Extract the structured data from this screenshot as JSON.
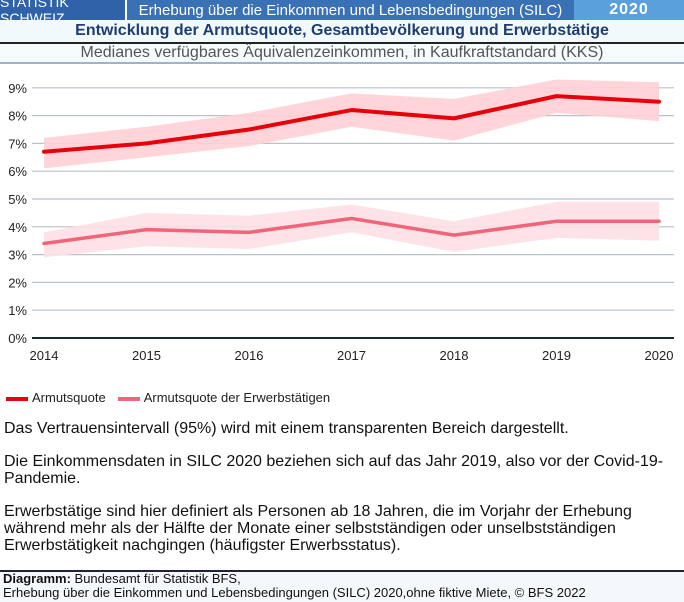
{
  "header": {
    "org": "STATISTIK SCHWEIZ",
    "survey": "Erhebung über die Einkommen und Lebensbedingungen (SILC)",
    "year": "2020"
  },
  "title": "Entwicklung der Armutsquote, Gesamtbevölkerung und Erwerbstätige",
  "subtitle": "Medianes verfügbares Äquivalenzeinkommen, in Kaufkraftstandard (KKS)",
  "chart_data": {
    "type": "line",
    "x": [
      "2014",
      "2015",
      "2016",
      "2017",
      "2018",
      "2019",
      "2020"
    ],
    "yticks": [
      "0%",
      "1%",
      "2%",
      "3%",
      "4%",
      "5%",
      "6%",
      "7%",
      "8%",
      "9%"
    ],
    "ylim": [
      0,
      9.3
    ],
    "grid": true,
    "legend": "bottom-left",
    "series": [
      {
        "name": "Armutsquote",
        "color": "#e8000b",
        "band_color": "#ffd0d6",
        "values": [
          6.7,
          7.0,
          7.5,
          8.2,
          7.9,
          8.7,
          8.5
        ],
        "lower": [
          6.1,
          6.5,
          6.9,
          7.6,
          7.1,
          8.1,
          7.8
        ],
        "upper": [
          7.2,
          7.6,
          8.1,
          8.8,
          8.6,
          9.3,
          9.2
        ]
      },
      {
        "name": "Armutsquote der Erwerbstätigen",
        "color": "#f0657a",
        "band_color": "#fde0e4",
        "values": [
          3.4,
          3.9,
          3.8,
          4.3,
          3.7,
          4.2,
          4.2
        ],
        "lower": [
          2.9,
          3.3,
          3.2,
          3.8,
          3.1,
          3.6,
          3.5
        ],
        "upper": [
          3.8,
          4.5,
          4.4,
          4.8,
          4.2,
          4.9,
          4.9
        ]
      }
    ]
  },
  "notes": [
    "Das Vertrauensintervall (95%) wird mit einem transparenten Bereich dargestellt.",
    "Die Einkommensdaten in SILC 2020 beziehen sich auf das Jahr 2019, also vor der Covid-19-Pandemie.",
    "Erwerbstätige sind hier definiert als Personen ab 18 Jahren, die im Vorjahr der Erhebung während mehr als der Hälfte der Monate einer selbstständigen oder unselbstständigen Erwerbstätigkeit nachgingen (häufigster Erwerbsstatus)."
  ],
  "footer": {
    "label": "Diagramm:",
    "line1": " Bundesamt für Statistik BFS,",
    "line2": "Erhebung über die Einkommen und Lebensbedingungen (SILC) 2020,ohne fiktive Miete,  © BFS 2022"
  }
}
